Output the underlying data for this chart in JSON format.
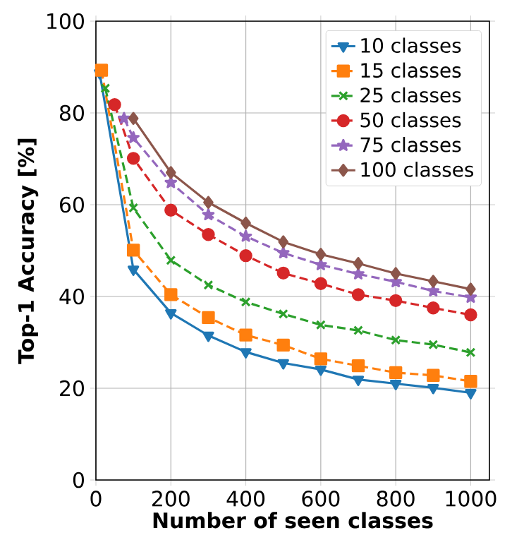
{
  "chart_data": {
    "type": "line",
    "xlabel": "Number of seen classes",
    "ylabel": "Top-1 Accuracy [%]",
    "xlim": [
      0,
      1050
    ],
    "ylim": [
      0,
      100
    ],
    "xticks": [
      0,
      200,
      400,
      600,
      800,
      1000
    ],
    "yticks": [
      0,
      20,
      40,
      60,
      80,
      100
    ],
    "grid": true,
    "legend": "top right",
    "series": [
      {
        "name": "10 classes",
        "color": "#1f77b4",
        "marker": "triangle",
        "line_style": "solid",
        "x": [
          10,
          100,
          200,
          300,
          400,
          500,
          600,
          700,
          800,
          900,
          1000
        ],
        "values": [
          88.7,
          45.9,
          36.4,
          31.5,
          27.9,
          25.5,
          24.1,
          21.9,
          21.0,
          20.1,
          19.0
        ]
      },
      {
        "name": "15 classes",
        "color": "#ff7f0e",
        "marker": "square",
        "line_style": "dashed",
        "x": [
          15,
          100,
          200,
          300,
          400,
          500,
          600,
          700,
          800,
          900,
          1000
        ],
        "values": [
          89.3,
          50.1,
          40.4,
          35.4,
          31.6,
          29.4,
          26.4,
          24.9,
          23.4,
          22.8,
          21.5
        ]
      },
      {
        "name": "25 classes",
        "color": "#2ca02c",
        "marker": "cross",
        "line_style": "dashed",
        "x": [
          25,
          100,
          200,
          300,
          400,
          500,
          600,
          700,
          800,
          900,
          1000
        ],
        "values": [
          85.4,
          59.3,
          47.9,
          42.5,
          38.8,
          36.2,
          33.8,
          32.6,
          30.5,
          29.5,
          27.8
        ]
      },
      {
        "name": "50 classes",
        "color": "#d62728",
        "marker": "circle",
        "line_style": "dashed",
        "x": [
          50,
          100,
          200,
          300,
          400,
          500,
          600,
          700,
          800,
          900,
          1000
        ],
        "values": [
          81.8,
          70.1,
          58.8,
          53.5,
          48.9,
          45.1,
          42.8,
          40.4,
          39.1,
          37.5,
          36.0
        ]
      },
      {
        "name": "75 classes",
        "color": "#9467bd",
        "marker": "star",
        "line_style": "dashed",
        "x": [
          75,
          100,
          200,
          300,
          400,
          500,
          600,
          700,
          800,
          900,
          1000
        ],
        "values": [
          78.8,
          74.6,
          64.8,
          57.8,
          53.1,
          49.5,
          46.9,
          44.9,
          43.2,
          41.2,
          39.8
        ]
      },
      {
        "name": "100 classes",
        "color": "#8c564b",
        "marker": "diamond",
        "line_style": "solid",
        "x": [
          100,
          200,
          300,
          400,
          500,
          600,
          700,
          800,
          900,
          1000
        ],
        "values": [
          78.8,
          67.0,
          60.5,
          56.0,
          51.9,
          49.2,
          47.2,
          45.0,
          43.3,
          41.6
        ]
      }
    ]
  }
}
